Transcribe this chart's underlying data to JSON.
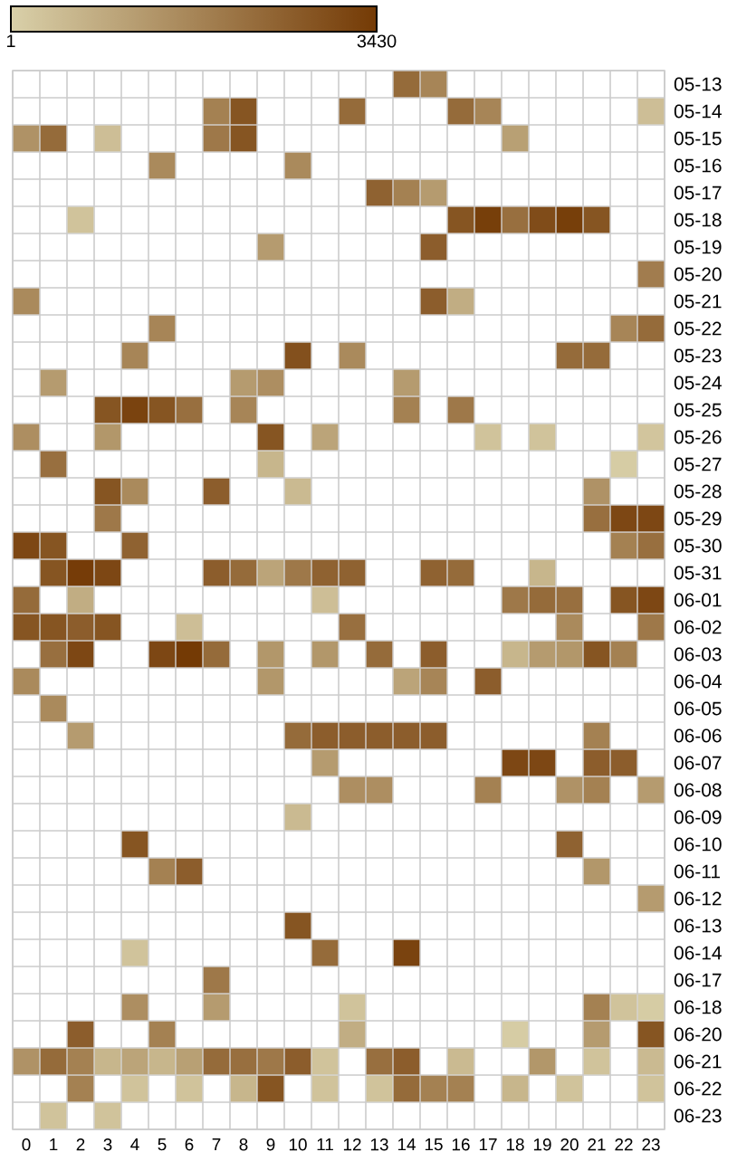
{
  "chart_data": {
    "type": "heatmap",
    "categories": [
      "0",
      "1",
      "2",
      "3",
      "4",
      "5",
      "6",
      "7",
      "8",
      "9",
      "10",
      "11",
      "12",
      "13",
      "14",
      "15",
      "16",
      "17",
      "18",
      "19",
      "20",
      "21",
      "22",
      "23"
    ],
    "y_categories": [
      "05-13",
      "05-14",
      "05-15",
      "05-16",
      "05-17",
      "05-18",
      "05-19",
      "05-20",
      "05-21",
      "05-22",
      "05-23",
      "05-24",
      "05-25",
      "05-26",
      "05-27",
      "05-28",
      "05-29",
      "05-30",
      "05-31",
      "06-01",
      "06-02",
      "06-03",
      "06-04",
      "06-05",
      "06-06",
      "06-07",
      "06-08",
      "06-09",
      "06-10",
      "06-11",
      "06-12",
      "06-13",
      "06-14",
      "06-17",
      "06-18",
      "06-20",
      "06-21",
      "06-22",
      "06-23"
    ],
    "cells": [
      [
        null,
        null,
        null,
        null,
        null,
        null,
        null,
        null,
        null,
        null,
        null,
        null,
        null,
        null,
        2300,
        1700,
        null,
        null,
        null,
        null,
        null,
        null,
        null,
        null
      ],
      [
        null,
        null,
        null,
        null,
        null,
        null,
        null,
        1800,
        2800,
        null,
        null,
        null,
        2300,
        null,
        null,
        null,
        2300,
        1700,
        null,
        null,
        null,
        null,
        null,
        400
      ],
      [
        1400,
        2300,
        null,
        400,
        null,
        null,
        null,
        2000,
        2800,
        null,
        null,
        null,
        null,
        null,
        null,
        null,
        null,
        null,
        1100,
        null,
        null,
        null,
        null,
        null
      ],
      [
        null,
        null,
        null,
        null,
        null,
        1600,
        null,
        null,
        null,
        null,
        1600,
        null,
        null,
        null,
        null,
        null,
        null,
        null,
        null,
        null,
        null,
        null,
        null,
        null
      ],
      [
        null,
        null,
        null,
        null,
        null,
        null,
        null,
        null,
        null,
        null,
        null,
        null,
        null,
        2500,
        1800,
        1200,
        null,
        null,
        null,
        null,
        null,
        null,
        null,
        null
      ],
      [
        null,
        null,
        300,
        null,
        null,
        null,
        null,
        null,
        null,
        null,
        null,
        null,
        null,
        null,
        null,
        null,
        2800,
        3300,
        2200,
        3000,
        3300,
        2800,
        null,
        null
      ],
      [
        null,
        null,
        null,
        null,
        null,
        null,
        null,
        null,
        null,
        1200,
        null,
        null,
        null,
        null,
        null,
        2600,
        null,
        null,
        null,
        null,
        null,
        null,
        null,
        null
      ],
      [
        null,
        null,
        null,
        null,
        null,
        null,
        null,
        null,
        null,
        null,
        null,
        null,
        null,
        null,
        null,
        null,
        null,
        null,
        null,
        null,
        null,
        null,
        null,
        1900
      ],
      [
        1600,
        null,
        null,
        null,
        null,
        null,
        null,
        null,
        null,
        null,
        null,
        null,
        null,
        null,
        null,
        2600,
        800,
        null,
        null,
        null,
        null,
        null,
        null,
        null
      ],
      [
        null,
        null,
        null,
        null,
        null,
        1700,
        null,
        null,
        null,
        null,
        null,
        null,
        null,
        null,
        null,
        null,
        null,
        null,
        null,
        null,
        null,
        null,
        1700,
        2300
      ],
      [
        null,
        null,
        null,
        null,
        1700,
        null,
        null,
        null,
        null,
        null,
        2900,
        null,
        1600,
        null,
        null,
        null,
        null,
        null,
        null,
        null,
        2300,
        2300,
        null,
        null
      ],
      [
        null,
        1200,
        null,
        null,
        null,
        null,
        null,
        null,
        1200,
        1500,
        null,
        null,
        null,
        null,
        1200,
        null,
        null,
        null,
        null,
        null,
        null,
        null,
        null,
        null
      ],
      [
        null,
        null,
        null,
        2800,
        3200,
        2800,
        2200,
        null,
        1700,
        null,
        null,
        null,
        null,
        null,
        1800,
        null,
        2000,
        null,
        null,
        null,
        null,
        null,
        null,
        null
      ],
      [
        1500,
        null,
        null,
        1300,
        null,
        null,
        null,
        null,
        null,
        2800,
        null,
        1000,
        null,
        null,
        null,
        null,
        null,
        300,
        null,
        300,
        null,
        null,
        null,
        250
      ],
      [
        null,
        2200,
        null,
        null,
        null,
        null,
        null,
        null,
        null,
        600,
        null,
        null,
        null,
        null,
        null,
        null,
        null,
        null,
        null,
        null,
        null,
        null,
        100,
        null
      ],
      [
        null,
        null,
        null,
        2800,
        1600,
        null,
        null,
        2600,
        null,
        null,
        500,
        null,
        null,
        null,
        null,
        null,
        null,
        null,
        null,
        null,
        null,
        1400,
        null,
        null
      ],
      [
        null,
        null,
        null,
        2000,
        null,
        null,
        null,
        null,
        null,
        null,
        null,
        null,
        null,
        null,
        null,
        null,
        null,
        null,
        null,
        null,
        null,
        2200,
        3100,
        3100
      ],
      [
        3100,
        2800,
        null,
        null,
        2500,
        null,
        null,
        null,
        null,
        null,
        null,
        null,
        null,
        null,
        null,
        null,
        null,
        null,
        null,
        null,
        null,
        null,
        1800,
        2200
      ],
      [
        null,
        2800,
        3350,
        3100,
        null,
        null,
        null,
        2600,
        2300,
        1000,
        2000,
        2500,
        2500,
        null,
        null,
        2500,
        2300,
        null,
        null,
        600,
        null,
        null,
        null,
        null
      ],
      [
        2300,
        null,
        800,
        null,
        null,
        null,
        null,
        null,
        null,
        null,
        null,
        400,
        null,
        null,
        null,
        null,
        null,
        null,
        2000,
        2300,
        2200,
        null,
        2800,
        3100
      ],
      [
        2800,
        2800,
        2600,
        2800,
        null,
        null,
        400,
        null,
        null,
        null,
        null,
        null,
        2200,
        null,
        null,
        null,
        null,
        null,
        null,
        null,
        1600,
        null,
        null,
        2000
      ],
      [
        null,
        2200,
        3100,
        null,
        null,
        3100,
        3430,
        2300,
        null,
        1300,
        null,
        1300,
        null,
        2300,
        null,
        2600,
        null,
        null,
        600,
        1200,
        1300,
        2800,
        1800,
        null
      ],
      [
        1600,
        null,
        null,
        null,
        null,
        null,
        null,
        null,
        null,
        1300,
        null,
        null,
        null,
        null,
        1000,
        1700,
        null,
        2600,
        null,
        null,
        null,
        null,
        null,
        null
      ],
      [
        null,
        1600,
        null,
        null,
        null,
        null,
        null,
        null,
        null,
        null,
        null,
        null,
        null,
        null,
        null,
        null,
        null,
        null,
        null,
        null,
        null,
        null,
        null,
        null
      ],
      [
        null,
        null,
        1200,
        null,
        null,
        null,
        null,
        null,
        null,
        null,
        2300,
        2600,
        2600,
        2600,
        2600,
        2600,
        null,
        null,
        null,
        null,
        null,
        1800,
        null,
        null
      ],
      [
        null,
        null,
        null,
        null,
        null,
        null,
        null,
        null,
        null,
        null,
        null,
        1200,
        null,
        null,
        null,
        null,
        null,
        null,
        3100,
        3100,
        null,
        2600,
        2600,
        null
      ],
      [
        null,
        null,
        null,
        null,
        null,
        null,
        null,
        null,
        null,
        null,
        null,
        null,
        1500,
        1500,
        null,
        null,
        null,
        1800,
        null,
        null,
        1400,
        1800,
        null,
        1200
      ],
      [
        null,
        null,
        null,
        null,
        null,
        null,
        null,
        null,
        null,
        null,
        500,
        null,
        null,
        null,
        null,
        null,
        null,
        null,
        null,
        null,
        null,
        null,
        null,
        null
      ],
      [
        null,
        null,
        null,
        null,
        2800,
        null,
        null,
        null,
        null,
        null,
        null,
        null,
        null,
        null,
        null,
        null,
        null,
        null,
        null,
        null,
        2500,
        null,
        null,
        null
      ],
      [
        null,
        null,
        null,
        null,
        null,
        1800,
        2600,
        null,
        null,
        null,
        null,
        null,
        null,
        null,
        null,
        null,
        null,
        null,
        null,
        null,
        null,
        1300,
        null,
        null
      ],
      [
        null,
        null,
        null,
        null,
        null,
        null,
        null,
        null,
        null,
        null,
        null,
        null,
        null,
        null,
        null,
        null,
        null,
        null,
        null,
        null,
        null,
        null,
        null,
        1200
      ],
      [
        null,
        null,
        null,
        null,
        null,
        null,
        null,
        null,
        null,
        null,
        2800,
        null,
        null,
        null,
        null,
        null,
        null,
        null,
        null,
        null,
        null,
        null,
        null,
        null
      ],
      [
        null,
        null,
        null,
        null,
        300,
        null,
        null,
        null,
        null,
        null,
        null,
        2300,
        null,
        null,
        3200,
        null,
        null,
        null,
        null,
        null,
        null,
        null,
        null,
        null
      ],
      [
        null,
        null,
        null,
        null,
        null,
        null,
        null,
        2000,
        null,
        null,
        null,
        null,
        null,
        null,
        null,
        null,
        null,
        null,
        null,
        null,
        null,
        null,
        null,
        null
      ],
      [
        null,
        null,
        null,
        null,
        1500,
        null,
        null,
        1200,
        null,
        null,
        null,
        null,
        300,
        null,
        null,
        null,
        null,
        null,
        null,
        null,
        null,
        1800,
        300,
        100
      ],
      [
        null,
        null,
        2600,
        null,
        null,
        1800,
        null,
        null,
        null,
        null,
        null,
        null,
        800,
        null,
        null,
        null,
        null,
        null,
        100,
        null,
        null,
        1200,
        null,
        2800
      ],
      [
        1400,
        2300,
        1800,
        600,
        1000,
        600,
        1100,
        2300,
        2200,
        2000,
        2600,
        300,
        null,
        2200,
        2600,
        null,
        500,
        null,
        null,
        1300,
        null,
        300,
        null,
        500
      ],
      [
        null,
        null,
        1800,
        null,
        300,
        null,
        300,
        null,
        600,
        2800,
        null,
        300,
        null,
        300,
        2300,
        1800,
        1800,
        null,
        600,
        null,
        300,
        null,
        null,
        300
      ],
      [
        null,
        300,
        null,
        300,
        null,
        null,
        null,
        null,
        null,
        null,
        null,
        null,
        null,
        null,
        null,
        null,
        null,
        null,
        null,
        null,
        null,
        null,
        null,
        null
      ]
    ],
    "clim": [
      1,
      3430
    ],
    "cticks": [
      1,
      3430
    ]
  }
}
